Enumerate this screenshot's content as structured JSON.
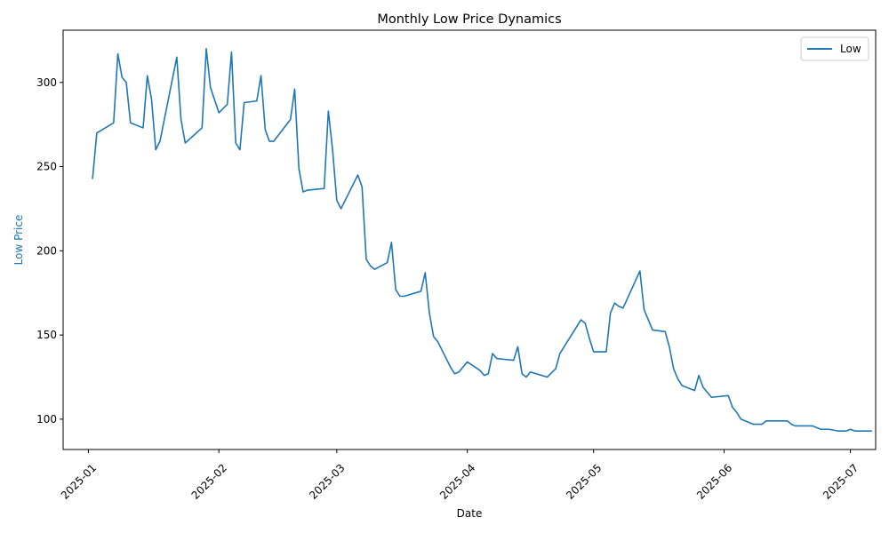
{
  "chart_data": {
    "type": "line",
    "title": "Monthly Low Price Dynamics",
    "xlabel": "Date",
    "ylabel": "Low Price",
    "ylabel_color": "#1f77b4",
    "grid": false,
    "legend_placement": "top-right",
    "x_ticks": [
      "2025-01",
      "2025-02",
      "2025-03",
      "2025-04",
      "2025-05",
      "2025-06",
      "2025-07"
    ],
    "y_ticks": [
      100,
      150,
      200,
      250,
      300
    ],
    "xlim": [
      "2024-12-26",
      "2025-07-07"
    ],
    "ylim": [
      82,
      331
    ],
    "series": [
      {
        "name": "Low",
        "color": "#1f77b4",
        "points": [
          [
            "2025-01-02",
            243
          ],
          [
            "2025-01-03",
            270
          ],
          [
            "2025-01-07",
            276
          ],
          [
            "2025-01-08",
            317
          ],
          [
            "2025-01-09",
            303
          ],
          [
            "2025-01-10",
            300
          ],
          [
            "2025-01-11",
            276
          ],
          [
            "2025-01-14",
            273
          ],
          [
            "2025-01-15",
            304
          ],
          [
            "2025-01-16",
            290
          ],
          [
            "2025-01-17",
            260
          ],
          [
            "2025-01-18",
            265
          ],
          [
            "2025-01-22",
            315
          ],
          [
            "2025-01-23",
            278
          ],
          [
            "2025-01-24",
            264
          ],
          [
            "2025-01-28",
            273
          ],
          [
            "2025-01-29",
            320
          ],
          [
            "2025-01-30",
            297
          ],
          [
            "2025-02-01",
            282
          ],
          [
            "2025-02-03",
            287
          ],
          [
            "2025-02-04",
            318
          ],
          [
            "2025-02-05",
            264
          ],
          [
            "2025-02-06",
            260
          ],
          [
            "2025-02-07",
            288
          ],
          [
            "2025-02-10",
            289
          ],
          [
            "2025-02-11",
            304
          ],
          [
            "2025-02-12",
            272
          ],
          [
            "2025-02-13",
            265
          ],
          [
            "2025-02-14",
            265
          ],
          [
            "2025-02-18",
            278
          ],
          [
            "2025-02-19",
            296
          ],
          [
            "2025-02-20",
            249
          ],
          [
            "2025-02-21",
            235
          ],
          [
            "2025-02-22",
            236
          ],
          [
            "2025-02-26",
            237
          ],
          [
            "2025-02-27",
            283
          ],
          [
            "2025-02-28",
            260
          ],
          [
            "2025-03-01",
            230
          ],
          [
            "2025-03-02",
            225
          ],
          [
            "2025-03-06",
            245
          ],
          [
            "2025-03-07",
            238
          ],
          [
            "2025-03-08",
            195
          ],
          [
            "2025-03-09",
            191
          ],
          [
            "2025-03-10",
            189
          ],
          [
            "2025-03-13",
            193
          ],
          [
            "2025-03-14",
            205
          ],
          [
            "2025-03-15",
            177
          ],
          [
            "2025-03-16",
            173
          ],
          [
            "2025-03-17",
            173
          ],
          [
            "2025-03-21",
            176
          ],
          [
            "2025-03-22",
            187
          ],
          [
            "2025-03-23",
            163
          ],
          [
            "2025-03-24",
            149
          ],
          [
            "2025-03-25",
            146
          ],
          [
            "2025-03-28",
            131
          ],
          [
            "2025-03-29",
            127
          ],
          [
            "2025-03-30",
            128
          ],
          [
            "2025-04-01",
            134
          ],
          [
            "2025-04-04",
            129
          ],
          [
            "2025-04-05",
            126
          ],
          [
            "2025-04-06",
            127
          ],
          [
            "2025-04-07",
            139
          ],
          [
            "2025-04-08",
            136
          ],
          [
            "2025-04-12",
            135
          ],
          [
            "2025-04-13",
            143
          ],
          [
            "2025-04-14",
            127
          ],
          [
            "2025-04-15",
            125
          ],
          [
            "2025-04-16",
            128
          ],
          [
            "2025-04-20",
            125
          ],
          [
            "2025-04-22",
            130
          ],
          [
            "2025-04-23",
            139
          ],
          [
            "2025-04-28",
            159
          ],
          [
            "2025-04-29",
            157
          ],
          [
            "2025-04-30",
            148
          ],
          [
            "2025-05-01",
            140
          ],
          [
            "2025-05-04",
            140
          ],
          [
            "2025-05-05",
            163
          ],
          [
            "2025-05-06",
            169
          ],
          [
            "2025-05-07",
            167
          ],
          [
            "2025-05-08",
            166
          ],
          [
            "2025-05-12",
            188
          ],
          [
            "2025-05-13",
            165
          ],
          [
            "2025-05-15",
            153
          ],
          [
            "2025-05-18",
            152
          ],
          [
            "2025-05-19",
            143
          ],
          [
            "2025-05-20",
            130
          ],
          [
            "2025-05-21",
            124
          ],
          [
            "2025-05-22",
            120
          ],
          [
            "2025-05-25",
            117
          ],
          [
            "2025-05-26",
            126
          ],
          [
            "2025-05-27",
            119
          ],
          [
            "2025-05-29",
            113
          ],
          [
            "2025-06-02",
            114
          ],
          [
            "2025-06-03",
            107
          ],
          [
            "2025-06-04",
            104
          ],
          [
            "2025-06-05",
            100
          ],
          [
            "2025-06-08",
            97
          ],
          [
            "2025-06-10",
            97
          ],
          [
            "2025-06-11",
            99
          ],
          [
            "2025-06-16",
            99
          ],
          [
            "2025-06-17",
            97
          ],
          [
            "2025-06-18",
            96
          ],
          [
            "2025-06-22",
            96
          ],
          [
            "2025-06-24",
            94
          ],
          [
            "2025-06-26",
            94
          ],
          [
            "2025-06-28",
            93
          ],
          [
            "2025-06-30",
            93
          ],
          [
            "2025-07-01",
            94
          ],
          [
            "2025-07-02",
            93
          ],
          [
            "2025-07-05",
            93
          ],
          [
            "2025-07-06",
            93
          ]
        ]
      }
    ]
  }
}
